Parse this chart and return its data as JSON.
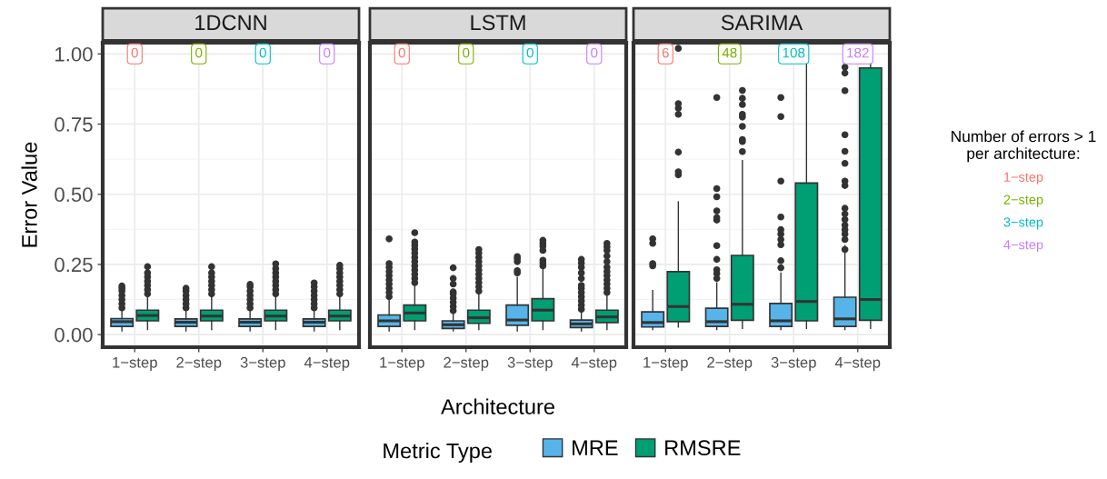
{
  "chart_data": [
    {
      "type": "box",
      "title": "1DCNN",
      "ylabel": "Error Value",
      "legend_title": "Metric Type",
      "legend": "bottom",
      "categories": [
        "1−step",
        "2−step",
        "3−step",
        "4−step"
      ],
      "ylim": [
        -0.045,
        1.04
      ],
      "yticks": [
        {
          "value": 0,
          "label": "0.00"
        },
        {
          "value": 0.25,
          "label": "0.25"
        },
        {
          "value": 0.5,
          "label": "0.50"
        },
        {
          "value": 0.75,
          "label": "0.75"
        },
        {
          "value": 1,
          "label": "1.00"
        }
      ],
      "grid": true,
      "colors": [
        "#f8766d",
        "#7cae00",
        "#00bfc4",
        "#c77cff"
      ],
      "annotations": [
        {
          "text": "0",
          "x": "1−step",
          "y": 1.0
        },
        {
          "text": "0",
          "x": "2−step",
          "y": 1.0
        },
        {
          "text": "0",
          "x": "3−step",
          "y": 1.0
        },
        {
          "text": "0",
          "x": "4−step",
          "y": 1.0
        }
      ],
      "series": [
        {
          "name": "MRE",
          "color": "#56b4e9",
          "boxes": [
            {
              "low": 0.013,
              "q1": 0.029,
              "median": 0.046,
              "q3": 0.057,
              "high": 0.087,
              "outliers": [
                0.095,
                0.11,
                0.125,
                0.14,
                0.155,
                0.165,
                0.173
              ]
            },
            {
              "low": 0.013,
              "q1": 0.029,
              "median": 0.044,
              "q3": 0.056,
              "high": 0.085,
              "outliers": [
                0.095,
                0.11,
                0.125,
                0.14,
                0.155,
                0.165
              ]
            },
            {
              "low": 0.013,
              "q1": 0.029,
              "median": 0.044,
              "q3": 0.056,
              "high": 0.085,
              "outliers": [
                0.095,
                0.11,
                0.125,
                0.14,
                0.155,
                0.17,
                0.179
              ]
            },
            {
              "low": 0.013,
              "q1": 0.029,
              "median": 0.044,
              "q3": 0.056,
              "high": 0.085,
              "outliers": [
                0.095,
                0.11,
                0.125,
                0.14,
                0.155,
                0.17,
                0.184
              ]
            }
          ]
        },
        {
          "name": "RMSRE",
          "color": "#009e73",
          "boxes": [
            {
              "low": 0.018,
              "q1": 0.049,
              "median": 0.068,
              "q3": 0.087,
              "high": 0.139,
              "outliers": [
                0.145,
                0.16,
                0.175,
                0.19,
                0.205,
                0.22,
                0.242
              ]
            },
            {
              "low": 0.018,
              "q1": 0.049,
              "median": 0.066,
              "q3": 0.087,
              "high": 0.139,
              "outliers": [
                0.145,
                0.16,
                0.175,
                0.19,
                0.205,
                0.22,
                0.242
              ]
            },
            {
              "low": 0.018,
              "q1": 0.049,
              "median": 0.066,
              "q3": 0.087,
              "high": 0.139,
              "outliers": [
                0.145,
                0.16,
                0.175,
                0.19,
                0.205,
                0.22,
                0.235,
                0.252
              ]
            },
            {
              "low": 0.018,
              "q1": 0.049,
              "median": 0.066,
              "q3": 0.087,
              "high": 0.139,
              "outliers": [
                0.145,
                0.16,
                0.175,
                0.19,
                0.205,
                0.22,
                0.235,
                0.247
              ]
            }
          ]
        }
      ]
    },
    {
      "type": "box",
      "title": "LSTM",
      "xlabel": "Architecture",
      "tick_labels": "x",
      "categories": [
        "1−step",
        "2−step",
        "3−step",
        "4−step"
      ],
      "ylim": [
        -0.045,
        1.04
      ],
      "grid": true,
      "colors": [
        "#f8766d",
        "#7cae00",
        "#00bfc4",
        "#c77cff"
      ],
      "annotations": [
        {
          "text": "0",
          "x": "1−step",
          "y": 1.0
        },
        {
          "text": "0",
          "x": "2−step",
          "y": 1.0
        },
        {
          "text": "0",
          "x": "3−step",
          "y": 1.0
        },
        {
          "text": "0",
          "x": "4−step",
          "y": 1.0
        }
      ],
      "series": [
        {
          "color": "#56b4e9",
          "boxes": [
            {
              "low": 0.013,
              "q1": 0.029,
              "median": 0.049,
              "q3": 0.07,
              "high": 0.125,
              "outliers": [
                0.135,
                0.15,
                0.165,
                0.18,
                0.195,
                0.21,
                0.225,
                0.24,
                0.253,
                0.341
              ]
            },
            {
              "low": 0.013,
              "q1": 0.022,
              "median": 0.035,
              "q3": 0.049,
              "high": 0.079,
              "outliers": [
                0.085,
                0.1,
                0.115,
                0.13,
                0.145,
                0.152,
                0.18,
                0.2,
                0.238
              ]
            },
            {
              "low": 0.013,
              "q1": 0.033,
              "median": 0.052,
              "q3": 0.105,
              "high": 0.204,
              "outliers": [
                0.22,
                0.228,
                0.26,
                0.27,
                0.278
              ]
            },
            {
              "low": 0.013,
              "q1": 0.025,
              "median": 0.038,
              "q3": 0.052,
              "high": 0.081,
              "outliers": [
                0.09,
                0.105,
                0.12,
                0.135,
                0.15,
                0.165,
                0.175,
                0.2,
                0.22,
                0.24,
                0.255,
                0.268
              ]
            }
          ]
        },
        {
          "color": "#009e73",
          "boxes": [
            {
              "low": 0.018,
              "q1": 0.049,
              "median": 0.077,
              "q3": 0.105,
              "high": 0.176,
              "outliers": [
                0.185,
                0.2,
                0.215,
                0.23,
                0.245,
                0.26,
                0.275,
                0.29,
                0.305,
                0.318,
                0.33,
                0.363
              ]
            },
            {
              "low": 0.018,
              "q1": 0.04,
              "median": 0.06,
              "q3": 0.087,
              "high": 0.148,
              "outliers": [
                0.155,
                0.17,
                0.185,
                0.2,
                0.215,
                0.23,
                0.245,
                0.26,
                0.275,
                0.29,
                0.303
              ]
            },
            {
              "low": 0.018,
              "q1": 0.049,
              "median": 0.087,
              "q3": 0.128,
              "high": 0.236,
              "outliers": [
                0.245,
                0.255,
                0.265,
                0.3,
                0.315,
                0.325,
                0.336
              ]
            },
            {
              "low": 0.018,
              "q1": 0.043,
              "median": 0.063,
              "q3": 0.087,
              "high": 0.143,
              "outliers": [
                0.15,
                0.165,
                0.18,
                0.195,
                0.21,
                0.225,
                0.24,
                0.26,
                0.28,
                0.3,
                0.313,
                0.325
              ]
            }
          ]
        }
      ]
    },
    {
      "type": "box",
      "title": "SARIMA",
      "tick_labels": "x",
      "categories": [
        "1−step",
        "2−step",
        "3−step",
        "4−step"
      ],
      "ylim": [
        -0.045,
        1.04
      ],
      "grid": true,
      "colors": [
        "#f8766d",
        "#7cae00",
        "#00bfc4",
        "#c77cff"
      ],
      "annotations": [
        {
          "text": "6",
          "x": "1−step",
          "y": 1.0
        },
        {
          "text": "48",
          "x": "2−step",
          "y": 1.0
        },
        {
          "text": "108",
          "x": "3−step",
          "y": 1.0
        },
        {
          "text": "182",
          "x": "4−step",
          "y": 1.0
        },
        "Number of errors > 1\nper architecture:",
        "1−step",
        "2−step",
        "3−step",
        "4−step"
      ],
      "series": [
        {
          "color": "#56b4e9",
          "boxes": [
            {
              "low": 0.018,
              "q1": 0.027,
              "median": 0.043,
              "q3": 0.081,
              "high": 0.157,
              "outliers": [
                0.245,
                0.253,
                0.325,
                0.341
              ]
            },
            {
              "low": 0.018,
              "q1": 0.029,
              "median": 0.046,
              "q3": 0.094,
              "high": 0.184,
              "outliers": [
                0.2,
                0.217,
                0.231,
                0.268,
                0.317,
                0.408,
                0.417,
                0.441,
                0.491,
                0.52,
                0.845
              ]
            },
            {
              "low": 0.018,
              "q1": 0.029,
              "median": 0.049,
              "q3": 0.111,
              "high": 0.219,
              "outliers": [
                0.238,
                0.263,
                0.32,
                0.339,
                0.358,
                0.374,
                0.419,
                0.547,
                0.777,
                0.845
              ]
            },
            {
              "low": 0.018,
              "q1": 0.029,
              "median": 0.056,
              "q3": 0.133,
              "high": 0.317,
              "outliers": [
                0.303,
                0.339,
                0.358,
                0.374,
                0.39,
                0.41,
                0.43,
                0.45,
                0.531,
                0.547,
                0.61,
                0.653,
                0.712,
                0.869,
                0.932,
                0.953
              ]
            }
          ]
        },
        {
          "color": "#009e73",
          "boxes": [
            {
              "low": 0.027,
              "q1": 0.046,
              "median": 0.1,
              "q3": 0.224,
              "high": 0.473,
              "outliers": [
                0.569,
                0.58,
                0.65,
                0.785,
                0.807,
                0.823,
                1.02
              ]
            },
            {
              "low": 0.022,
              "q1": 0.051,
              "median": 0.108,
              "q3": 0.282,
              "high": 0.62,
              "outliers": [
                0.652,
                0.688,
                0.695,
                0.742,
                0.775,
                0.785,
                0.82,
                0.842,
                0.87
              ]
            },
            {
              "low": 0.022,
              "q1": 0.049,
              "median": 0.118,
              "q3": 0.54,
              "high": 1.04
            },
            {
              "low": 0.022,
              "q1": 0.051,
              "median": 0.125,
              "q3": 0.95,
              "high": 1.04
            }
          ]
        }
      ]
    }
  ]
}
